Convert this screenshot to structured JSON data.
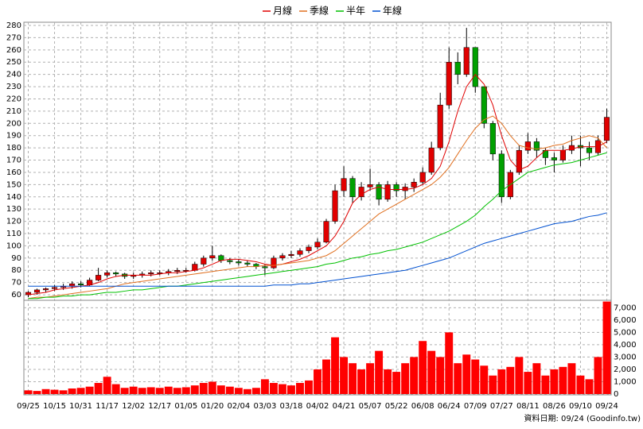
{
  "chart_data": [
    {
      "type": "candlestick",
      "up_color": "#e00000",
      "down_color": "#00a000",
      "ohlc": {
        "open": [
          60,
          62,
          64,
          65,
          66,
          67,
          69,
          68,
          72,
          76,
          78,
          77,
          75,
          76,
          77,
          78,
          78,
          79,
          80,
          80,
          85,
          90,
          92,
          88,
          87,
          86,
          85,
          83,
          82,
          90,
          92,
          93,
          96,
          99,
          103,
          120,
          145,
          155,
          140,
          148,
          150,
          138,
          150,
          145,
          148,
          152,
          160,
          180,
          215,
          250,
          240,
          262,
          230,
          200,
          175,
          140,
          160,
          178,
          185,
          178,
          172,
          170,
          178,
          182,
          180,
          176,
          186
        ],
        "high": [
          63,
          65,
          66,
          68,
          69,
          71,
          71,
          74,
          82,
          80,
          79,
          78,
          78,
          79,
          80,
          80,
          81,
          82,
          82,
          87,
          92,
          100,
          93,
          90,
          89,
          88,
          86,
          85,
          92,
          94,
          96,
          98,
          101,
          106,
          122,
          150,
          165,
          157,
          152,
          163,
          152,
          153,
          152,
          151,
          155,
          164,
          185,
          225,
          262,
          258,
          278,
          262,
          230,
          202,
          178,
          162,
          182,
          192,
          188,
          180,
          176,
          182,
          190,
          190,
          185,
          190,
          212
        ],
        "low": [
          58,
          60,
          62,
          63,
          64,
          65,
          66,
          67,
          71,
          74,
          75,
          73,
          73,
          74,
          75,
          76,
          76,
          77,
          78,
          79,
          83,
          88,
          86,
          85,
          84,
          83,
          81,
          76,
          81,
          88,
          90,
          91,
          94,
          97,
          102,
          118,
          140,
          135,
          137,
          145,
          133,
          136,
          140,
          138,
          144,
          150,
          158,
          178,
          212,
          232,
          238,
          225,
          196,
          170,
          135,
          138,
          158,
          175,
          172,
          166,
          160,
          168,
          175,
          165,
          170,
          174,
          184
        ],
        "close": [
          62,
          64,
          65,
          66,
          67,
          69,
          68,
          72,
          76,
          78,
          77,
          75,
          76,
          77,
          78,
          78,
          79,
          80,
          80,
          85,
          90,
          92,
          88,
          87,
          86,
          85,
          83,
          82,
          90,
          92,
          93,
          96,
          99,
          103,
          120,
          145,
          155,
          140,
          148,
          150,
          138,
          150,
          145,
          148,
          152,
          160,
          180,
          215,
          250,
          240,
          262,
          230,
          200,
          175,
          140,
          160,
          178,
          185,
          178,
          172,
          170,
          178,
          182,
          180,
          176,
          186,
          205
        ]
      },
      "series": [
        {
          "name": "月線",
          "color": "#e00000",
          "values": [
            60,
            61,
            62,
            64,
            65,
            66,
            67,
            68,
            70,
            73,
            75,
            76,
            76,
            76,
            76,
            77,
            78,
            78,
            79,
            80,
            82,
            85,
            88,
            89,
            89,
            88,
            87,
            85,
            84,
            85,
            87,
            89,
            92,
            96,
            100,
            108,
            120,
            135,
            142,
            146,
            148,
            146,
            146,
            146,
            147,
            150,
            155,
            165,
            185,
            210,
            230,
            240,
            232,
            215,
            190,
            170,
            162,
            165,
            172,
            178,
            178,
            178,
            179,
            181,
            181,
            181,
            185
          ]
        },
        {
          "name": "季線",
          "color": "#e07020",
          "values": [
            57,
            58,
            58,
            59,
            60,
            61,
            62,
            63,
            64,
            65,
            67,
            69,
            70,
            71,
            72,
            73,
            74,
            75,
            76,
            77,
            78,
            79,
            80,
            81,
            82,
            83,
            83,
            84,
            84,
            85,
            86,
            87,
            88,
            90,
            92,
            96,
            102,
            108,
            114,
            120,
            126,
            130,
            134,
            138,
            142,
            146,
            150,
            156,
            164,
            175,
            186,
            196,
            203,
            206,
            200,
            190,
            182,
            180,
            179,
            180,
            182,
            183,
            186,
            188,
            190,
            188,
            180
          ]
        },
        {
          "name": "半年",
          "color": "#00c000",
          "values": [
            57,
            57,
            58,
            58,
            59,
            59,
            60,
            60,
            61,
            62,
            62,
            63,
            64,
            64,
            65,
            66,
            67,
            67,
            68,
            69,
            70,
            71,
            72,
            73,
            74,
            75,
            76,
            77,
            78,
            79,
            80,
            81,
            82,
            83,
            85,
            86,
            88,
            90,
            91,
            93,
            94,
            96,
            97,
            99,
            101,
            103,
            106,
            109,
            112,
            116,
            120,
            125,
            132,
            138,
            145,
            150,
            155,
            160,
            162,
            164,
            166,
            167,
            168,
            170,
            172,
            174,
            176
          ]
        },
        {
          "name": "年線",
          "color": "#0050d0",
          "values": [
            67,
            67,
            67,
            67,
            67,
            67,
            67,
            67,
            67,
            67,
            67,
            67,
            67,
            67,
            67,
            67,
            67,
            67,
            67,
            67,
            67,
            67,
            67,
            67,
            67,
            67,
            67,
            67,
            68,
            68,
            68,
            69,
            69,
            70,
            71,
            72,
            73,
            74,
            75,
            76,
            77,
            78,
            79,
            80,
            82,
            84,
            86,
            88,
            90,
            93,
            96,
            99,
            102,
            104,
            106,
            108,
            110,
            112,
            114,
            116,
            118,
            119,
            120,
            122,
            124,
            125,
            127
          ]
        }
      ],
      "ylim": [
        55.5,
        282.6
      ],
      "yticks": [
        60,
        70,
        80,
        90,
        100,
        110,
        120,
        130,
        140,
        150,
        160,
        170,
        180,
        190,
        200,
        210,
        220,
        230,
        240,
        250,
        260,
        270,
        280
      ],
      "grid": true,
      "legend": "top"
    },
    {
      "type": "bar",
      "categories": [
        "09/25",
        null,
        null,
        "10/15",
        null,
        null,
        "10/31",
        null,
        null,
        "11/17",
        null,
        null,
        "12/02",
        null,
        null,
        "12/17",
        null,
        null,
        "01/05",
        null,
        null,
        "01/20",
        null,
        null,
        "02/04",
        null,
        null,
        "03/03",
        null,
        null,
        "03/18",
        null,
        null,
        "04/02",
        null,
        null,
        "04/21",
        null,
        null,
        "05/07",
        null,
        null,
        "05/22",
        null,
        null,
        "06/08",
        null,
        null,
        "06/24",
        null,
        null,
        "07/09",
        null,
        null,
        "07/27",
        null,
        null,
        "08/11",
        null,
        null,
        "08/26",
        null,
        null,
        "09/10",
        null,
        null,
        "09/24"
      ],
      "values": [
        300,
        250,
        400,
        350,
        300,
        450,
        500,
        600,
        900,
        1400,
        800,
        500,
        600,
        500,
        550,
        500,
        600,
        500,
        550,
        700,
        900,
        1000,
        700,
        600,
        500,
        400,
        500,
        1200,
        900,
        800,
        700,
        900,
        1100,
        2000,
        2800,
        4600,
        3000,
        2500,
        2000,
        2500,
        3500,
        2000,
        1800,
        2500,
        3000,
        4300,
        3500,
        3000,
        5000,
        2500,
        3200,
        2800,
        2300,
        1500,
        2000,
        2200,
        3000,
        1800,
        2500,
        1500,
        2000,
        2200,
        2500,
        1500,
        1200,
        3000,
        7500
      ],
      "color": "#ff0000",
      "ylim": [
        0,
        7600
      ],
      "yticks": [
        0,
        {
          "value": 1000,
          "label": "1,000"
        },
        {
          "value": 2000,
          "label": "2,000"
        },
        {
          "value": 3000,
          "label": "3,000"
        },
        {
          "value": 4000,
          "label": "4,000"
        },
        {
          "value": 5000,
          "label": "5,000"
        },
        {
          "value": 6000,
          "label": "6,000"
        },
        {
          "value": 7000,
          "label": "7,000"
        }
      ],
      "grid": true,
      "source": "資料日期: 09/24 (Goodinfo.tw)"
    }
  ]
}
